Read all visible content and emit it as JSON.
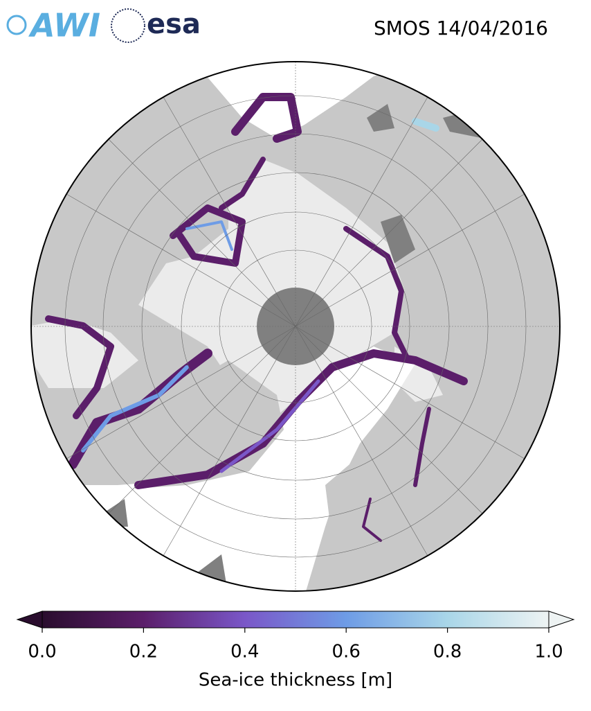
{
  "header": {
    "logos": [
      "AWI",
      "esa"
    ],
    "title": "SMOS 14/04/2016"
  },
  "colorbar": {
    "label": "Sea-ice thickness [m]",
    "range": [
      0,
      1.0
    ],
    "ticks": [
      {
        "value": 0,
        "label": "0.0"
      },
      0.2,
      0.4,
      0.6,
      0.8,
      {
        "value": 1,
        "label": "1.0"
      }
    ],
    "colors": [
      "#2a0d2e",
      "#5b1e6a",
      "#7a57c8",
      "#6e9ce6",
      "#a9d6e8",
      "#eef3f3"
    ]
  }
}
